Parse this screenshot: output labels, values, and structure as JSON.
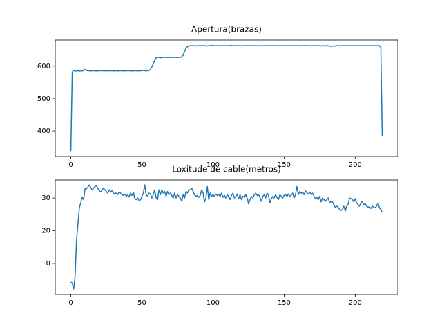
{
  "chart_data": [
    {
      "type": "line",
      "title": "Apertura(brazas)",
      "color": "#1f77b4",
      "values": [
        338,
        582,
        587,
        585,
        585,
        586,
        585,
        585,
        586,
        586,
        590,
        587,
        586,
        586,
        585,
        586,
        586,
        586,
        585,
        586,
        586,
        586,
        586,
        586,
        586,
        585,
        586,
        586,
        586,
        586,
        585,
        586,
        586,
        585,
        586,
        586,
        586,
        585,
        586,
        586,
        586,
        586,
        586,
        585,
        586,
        586,
        586,
        585,
        586,
        586,
        586,
        587,
        586,
        586,
        586,
        587,
        590,
        598,
        608,
        618,
        626,
        627,
        627,
        626,
        627,
        627,
        628,
        627,
        627,
        627,
        627,
        627,
        627,
        628,
        627,
        627,
        627,
        627,
        629,
        634,
        645,
        655,
        660,
        662,
        663,
        663,
        663,
        663,
        662,
        663,
        663,
        663,
        663,
        663,
        663,
        663,
        662,
        663,
        663,
        664,
        663,
        663,
        663,
        663,
        663,
        662,
        663,
        663,
        663,
        663,
        663,
        663,
        663,
        664,
        663,
        663,
        663,
        663,
        663,
        663,
        662,
        663,
        663,
        663,
        663,
        663,
        663,
        663,
        663,
        663,
        663,
        663,
        663,
        663,
        662,
        663,
        663,
        663,
        663,
        663,
        663,
        663,
        663,
        663,
        663,
        663,
        663,
        662,
        663,
        663,
        663,
        663,
        663,
        663,
        663,
        663,
        663,
        663,
        663,
        663,
        663,
        662,
        663,
        663,
        663,
        663,
        663,
        663,
        663,
        662,
        663,
        663,
        663,
        663,
        663,
        663,
        662,
        663,
        663,
        662,
        663,
        663,
        662,
        661,
        662,
        662,
        662,
        663,
        663,
        662,
        663,
        663,
        663,
        663,
        663,
        663,
        663,
        663,
        663,
        663,
        663,
        663,
        663,
        663,
        663,
        663,
        663,
        663,
        663,
        663,
        663,
        663,
        663,
        663,
        663,
        663,
        663,
        663,
        658,
        385
      ],
      "xlim": [
        -10.95,
        229.95
      ],
      "xticks": [
        0,
        50,
        100,
        150,
        200
      ],
      "ylim": [
        321.7,
        680.3
      ],
      "yticks": [
        400,
        500,
        600
      ]
    },
    {
      "type": "line",
      "title": "Loxitude de cable(metros)",
      "color": "#1f77b4",
      "values": [
        4.3,
        4.0,
        2.2,
        6,
        17,
        22,
        27,
        28.5,
        30.3,
        29.5,
        32.8,
        32.8,
        33.3,
        34,
        33.2,
        32.5,
        33,
        33.5,
        33.7,
        33,
        32.2,
        31.8,
        32.5,
        33,
        32.5,
        32,
        31.5,
        32.5,
        31.8,
        32.3,
        31.5,
        31.3,
        31.5,
        31,
        31.8,
        31.5,
        31,
        30.8,
        31.2,
        30.5,
        31,
        30.3,
        31.5,
        30.8,
        31.8,
        29.8,
        29.5,
        30,
        29.2,
        29.5,
        30.5,
        31.5,
        34,
        31,
        30.5,
        31.5,
        31.2,
        30,
        31,
        32.5,
        30,
        29.5,
        32.5,
        31,
        32.5,
        31.5,
        32,
        30.5,
        32,
        31,
        31.5,
        30.8,
        30,
        31.5,
        30,
        31,
        30.5,
        30,
        29,
        31,
        30,
        32,
        31.5,
        32.5,
        32.5,
        33,
        32,
        31,
        30.5,
        30.8,
        30.2,
        30.8,
        32.5,
        31.5,
        28.8,
        30,
        33.5,
        29.5,
        31.5,
        30.5,
        31,
        30.5,
        31.2,
        30.8,
        31,
        30.5,
        31.5,
        30.2,
        30.8,
        30,
        31,
        30.5,
        29.5,
        30.8,
        31.5,
        30,
        30.5,
        31.2,
        29.8,
        31,
        29.5,
        30.5,
        30.2,
        31,
        30,
        28.2,
        29.5,
        30.5,
        30,
        31,
        31.5,
        30.8,
        31,
        30.2,
        29,
        30.5,
        31,
        30,
        31.5,
        30.8,
        28.5,
        29.8,
        30.5,
        30,
        31,
        30.2,
        29.5,
        31,
        30.5,
        30,
        30.8,
        31,
        30.5,
        31.2,
        30.5,
        30.8,
        31.5,
        30,
        31,
        33.5,
        31,
        32,
        31.5,
        31.8,
        31,
        32.2,
        31.5,
        31.2,
        31.8,
        31,
        31.5,
        30.5,
        29.8,
        30.2,
        29.5,
        30.5,
        28.8,
        30,
        29.5,
        29,
        29.5,
        30,
        28.5,
        29,
        28.8,
        28,
        27,
        27.5,
        27.2,
        26.5,
        26.2,
        26.5,
        27.5,
        26,
        27.5,
        28,
        30,
        29.8,
        29.5,
        28.8,
        29.8,
        28.5,
        28,
        27.5,
        28.5,
        29,
        27.8,
        28.3,
        27.5,
        27.2,
        27.3,
        26.8,
        27.5,
        27.2,
        27,
        27.5,
        28.5,
        27,
        26.5,
        25.6
      ],
      "xlim": [
        -10.95,
        229.95
      ],
      "xticks": [
        0,
        50,
        100,
        150,
        200
      ],
      "ylim": [
        0.5,
        35.5
      ],
      "yticks": [
        10,
        20,
        30
      ]
    }
  ]
}
